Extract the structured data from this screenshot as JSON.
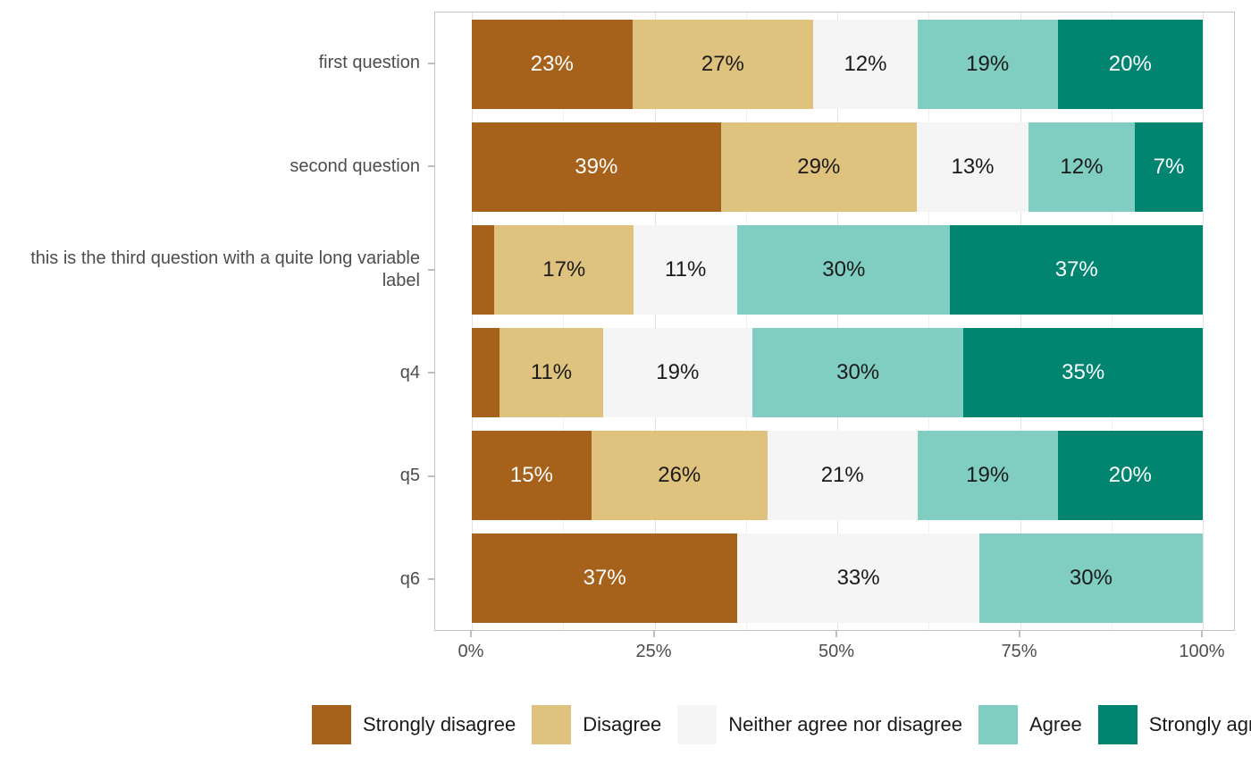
{
  "chart_data": {
    "type": "bar",
    "variant": "horizontal-stacked-100pct-likert",
    "title": "",
    "xlabel": "",
    "ylabel": "",
    "grid": true,
    "legend_position": "bottom",
    "categories": [
      "first question",
      "second question",
      "this is the third question with a quite long variable label",
      "q4",
      "q5",
      "q6"
    ],
    "series": [
      {
        "name": "Strongly disagree",
        "color": "#a6611a",
        "text_color": "#ffffff",
        "values": [
          23,
          39,
          4,
          5,
          15,
          37
        ],
        "labels": [
          "23%",
          "39%",
          "",
          "",
          "15%",
          "37%"
        ]
      },
      {
        "name": "Disagree",
        "color": "#dfc27d",
        "text_color": "#1a1a1a",
        "values": [
          27,
          29,
          17,
          11,
          26,
          0
        ],
        "labels": [
          "27%",
          "29%",
          "17%",
          "11%",
          "26%",
          ""
        ]
      },
      {
        "name": "Neither agree nor disagree",
        "color": "#f5f5f5",
        "text_color": "#1a1a1a",
        "values": [
          12,
          13,
          11,
          19,
          21,
          33
        ],
        "labels": [
          "12%",
          "13%",
          "11%",
          "19%",
          "21%",
          "33%"
        ]
      },
      {
        "name": "Agree",
        "color": "#80cdc1",
        "text_color": "#1a1a1a",
        "values": [
          19,
          12,
          30,
          30,
          19,
          30
        ],
        "labels": [
          "19%",
          "12%",
          "30%",
          "30%",
          "19%",
          "30%"
        ]
      },
      {
        "name": "Strongly agree",
        "color": "#018571",
        "text_color": "#ffffff",
        "values": [
          20,
          7,
          37,
          35,
          20,
          0
        ],
        "labels": [
          "20%",
          "7%",
          "37%",
          "35%",
          "20%",
          ""
        ]
      }
    ],
    "x_axis": {
      "range": [
        0,
        100
      ],
      "major_ticks": [
        {
          "value": 0,
          "label": "0%"
        },
        {
          "value": 25,
          "label": "25%"
        },
        {
          "value": 50,
          "label": "50%"
        },
        {
          "value": 75,
          "label": "75%"
        },
        {
          "value": 100,
          "label": "100%"
        }
      ],
      "minor_tick_values": [
        12.5,
        37.5,
        62.5,
        87.5
      ]
    },
    "legend": {
      "items": [
        {
          "label": "Strongly disagree",
          "color": "#a6611a"
        },
        {
          "label": "Disagree",
          "color": "#dfc27d"
        },
        {
          "label": "Neither agree nor disagree",
          "color": "#f5f5f5"
        },
        {
          "label": "Agree",
          "color": "#80cdc1"
        },
        {
          "label": "Strongly agree",
          "color": "#018571"
        }
      ]
    },
    "style": {
      "panel_border_color": "#c3c3c3",
      "major_grid_color": "#e2e2e2",
      "minor_grid_color": "#f0f0f0",
      "tick_color": "#bdbdbd",
      "axis_text_color": "#4d4d4d"
    }
  }
}
